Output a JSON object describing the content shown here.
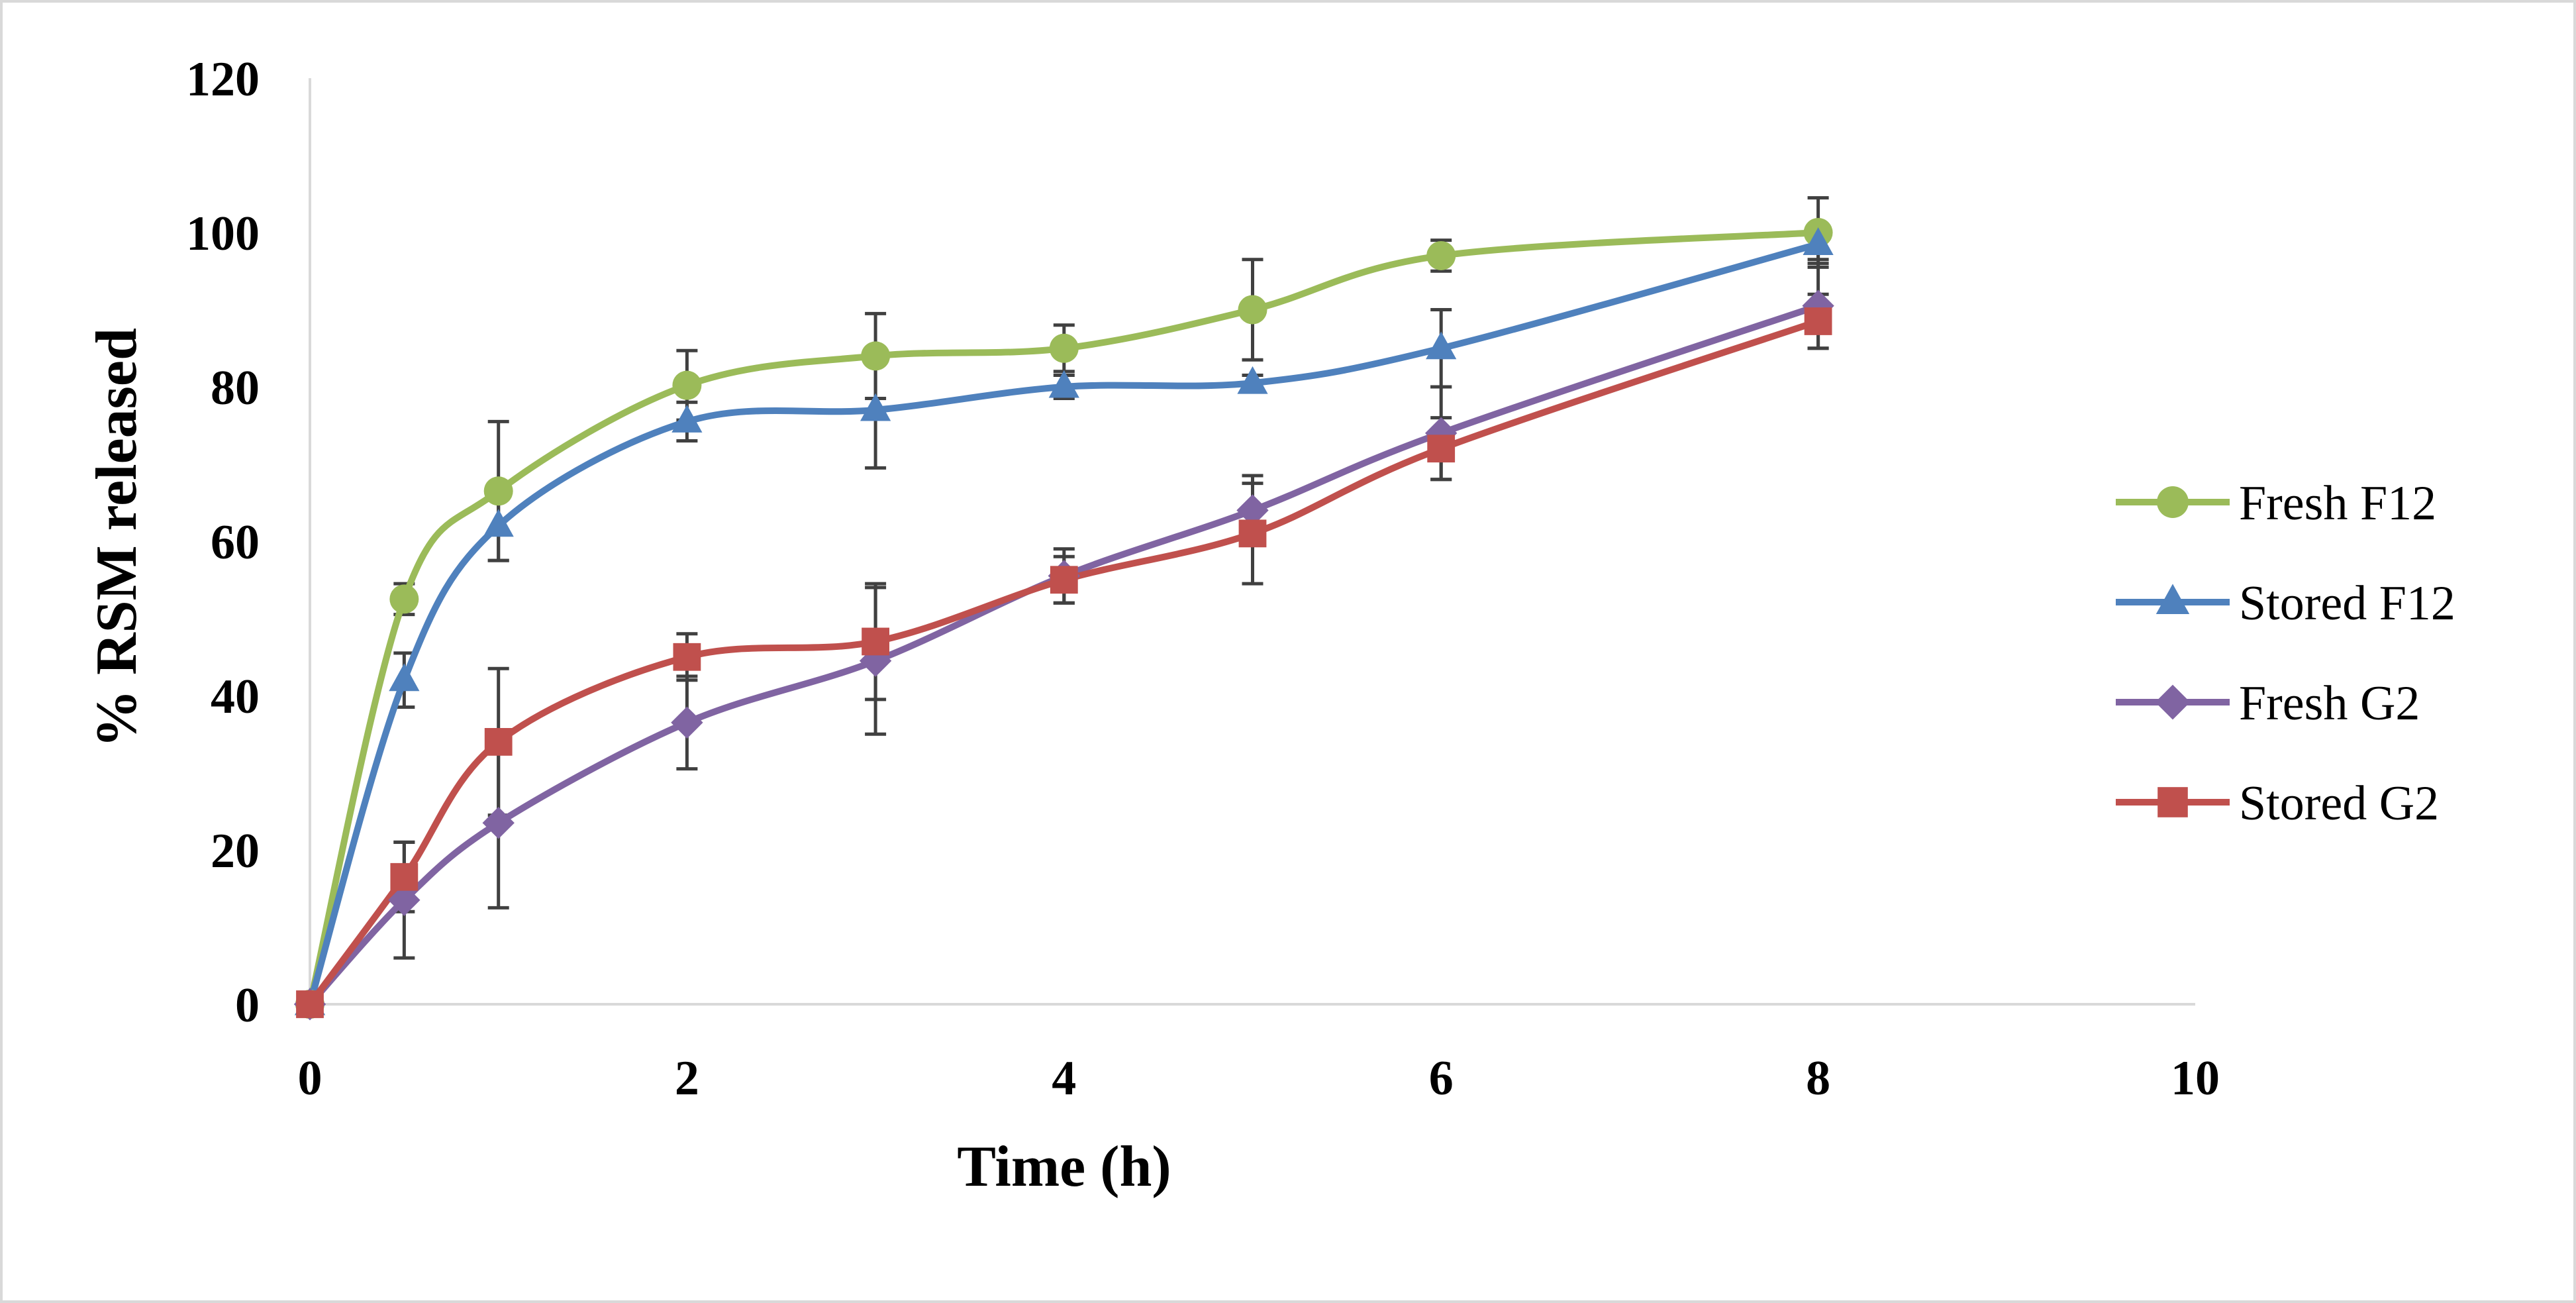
{
  "chart_data": {
    "type": "line",
    "title": "",
    "xlabel": "Time (h)",
    "ylabel": "% RSM released",
    "xlim": [
      0,
      10
    ],
    "ylim": [
      0,
      120
    ],
    "x_ticks": [
      0,
      2,
      4,
      6,
      8,
      10
    ],
    "y_ticks": [
      0,
      20,
      40,
      60,
      80,
      100,
      120
    ],
    "x_tick_labels": [
      "0",
      "2",
      "4",
      "6",
      "8",
      "10"
    ],
    "y_tick_labels": [
      "0",
      "20",
      "40",
      "60",
      "80",
      "100",
      "120"
    ],
    "grid": false,
    "legend_position": "right",
    "x": [
      0,
      0.5,
      1,
      2,
      3,
      4,
      5,
      6,
      8
    ],
    "series": [
      {
        "name": "Fresh F12",
        "color": "#9BBB59",
        "marker": "circle",
        "values": [
          0,
          52.5,
          66.5,
          80.2,
          84,
          85,
          90,
          97,
          100
        ],
        "errors": [
          0,
          2,
          9,
          4.5,
          5.5,
          3,
          6.5,
          2,
          4.5
        ]
      },
      {
        "name": "Stored F12",
        "color": "#4F81BD",
        "marker": "triangle",
        "values": [
          0,
          42,
          62,
          75.5,
          77,
          80,
          80.5,
          85,
          98.5
        ],
        "errors": [
          0,
          3.5,
          4.5,
          2.5,
          7.5,
          1.5,
          1,
          5,
          2
        ]
      },
      {
        "name": "Fresh G2",
        "color": "#8064A2",
        "marker": "diamond",
        "values": [
          0,
          13.5,
          23.5,
          36.5,
          44.5,
          55.5,
          64,
          74,
          90.5
        ],
        "errors": [
          0,
          7.5,
          11,
          6,
          9.5,
          3.5,
          4.5,
          6,
          5.5
        ]
      },
      {
        "name": "Stored G2",
        "color": "#C0504D",
        "marker": "square",
        "values": [
          0,
          16.5,
          34,
          45,
          47,
          55,
          61,
          72,
          88.5
        ],
        "errors": [
          0,
          4.5,
          9.5,
          3,
          7.5,
          3,
          6.5,
          4,
          3.5
        ]
      }
    ]
  }
}
